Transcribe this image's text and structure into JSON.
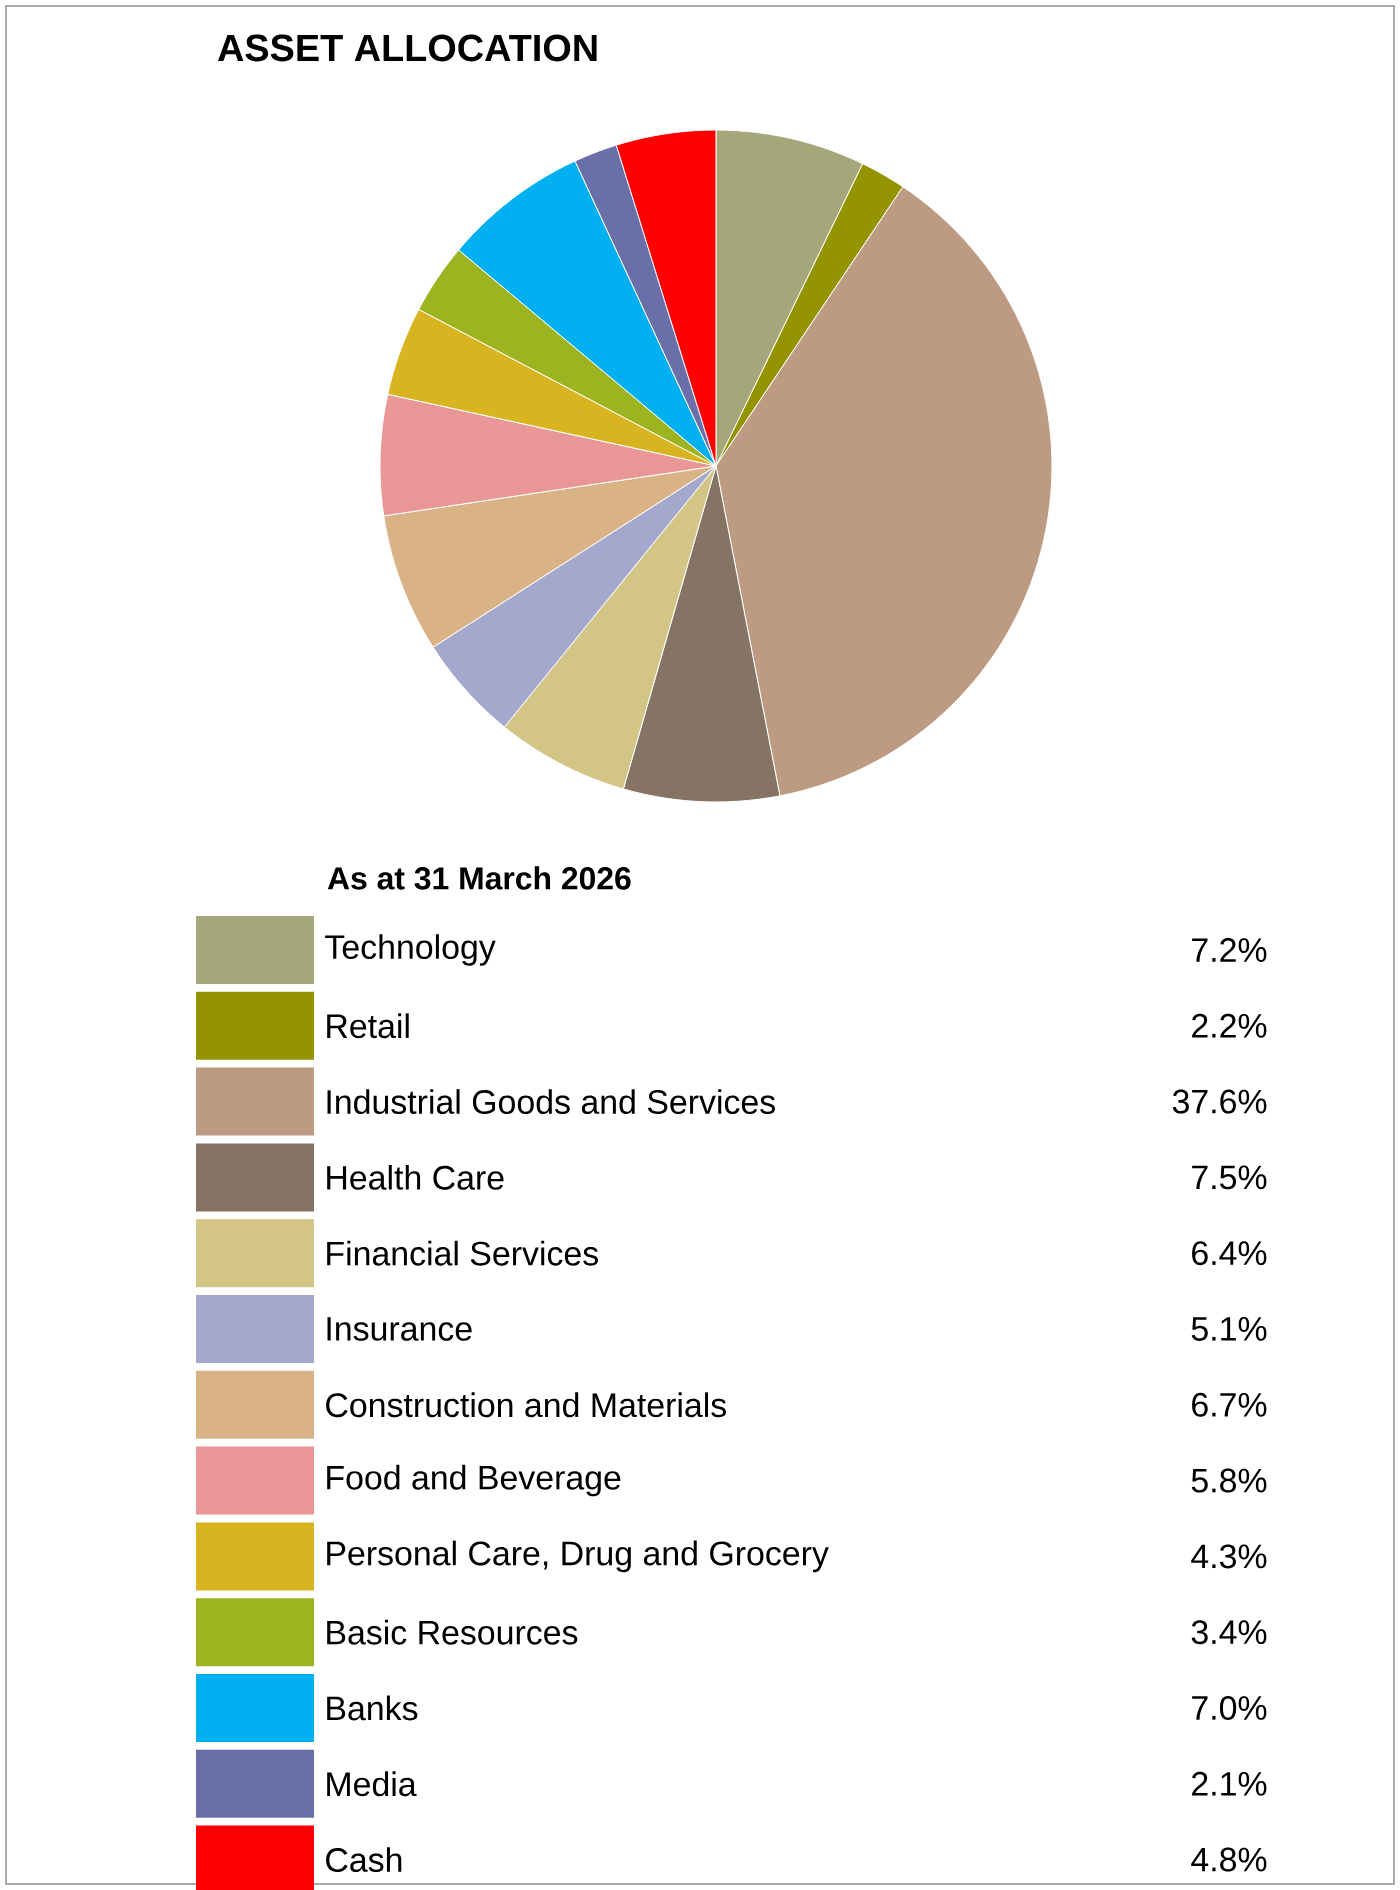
{
  "chart_data": {
    "type": "pie",
    "title": "ASSET ALLOCATION",
    "subtitle": "As at 31 March 2026",
    "categories": [
      "Technology",
      "Retail",
      "Industrial Goods and Services",
      "Health Care",
      "Financial Services",
      "Insurance",
      "Construction and Materials",
      "Food and Beverage",
      "Personal Care, Drug and Grocery",
      "Basic Resources",
      "Banks",
      "Media",
      "Cash"
    ],
    "values": [
      7.2,
      2.2,
      37.6,
      7.5,
      6.4,
      5.1,
      6.7,
      5.8,
      4.3,
      3.4,
      7.0,
      2.1,
      4.8
    ],
    "value_labels": [
      "7.2%",
      "2.2%",
      "37.6%",
      "7.5%",
      "6.4%",
      "5.1%",
      "6.7%",
      "5.8%",
      "4.3%",
      "3.4%",
      "7.0%",
      "2.1%",
      "4.8%"
    ],
    "colors": [
      "#a5a77a",
      "#949400",
      "#bd9a82",
      "#857464",
      "#d2c586",
      "#a4a8cc",
      "#d9b385",
      "#e99696",
      "#d8b421",
      "#9db320",
      "#00b0f0",
      "#6b6fa9",
      "#ff0000"
    ],
    "legend": "bottom"
  }
}
